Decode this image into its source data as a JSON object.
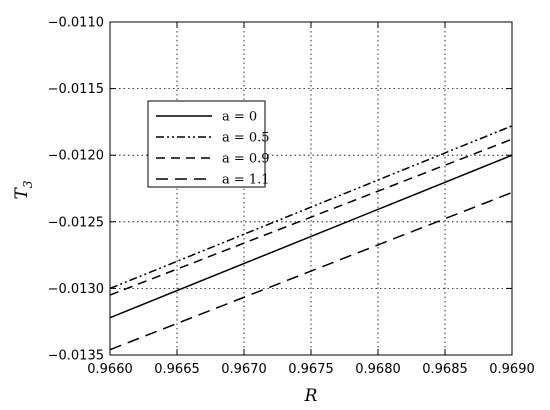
{
  "chart_data": {
    "type": "line",
    "title": "",
    "xlabel": "R",
    "ylabel": "T",
    "ylabel_sub": "3",
    "xlim": [
      0.966,
      0.969
    ],
    "ylim": [
      -0.0135,
      -0.011
    ],
    "xticks": [
      0.966,
      0.9665,
      0.967,
      0.9675,
      0.968,
      0.9685,
      0.969
    ],
    "xtick_labels": [
      "0.9660",
      "0.9665",
      "0.9670",
      "0.9675",
      "0.9680",
      "0.9685",
      "0.9690"
    ],
    "yticks": [
      -0.0135,
      -0.013,
      -0.0125,
      -0.012,
      -0.0115,
      -0.011
    ],
    "ytick_labels": [
      "−0.0135",
      "−0.0130",
      "−0.0125",
      "−0.0120",
      "−0.0115",
      "−0.0110"
    ],
    "grid": true,
    "legend_position": "upper-left",
    "series": [
      {
        "name": "a = 0",
        "dash": "solid",
        "x": [
          0.966,
          0.969
        ],
        "y": [
          -0.01322,
          -0.012
        ]
      },
      {
        "name": "a = 0.5",
        "dash": "dashdot",
        "x": [
          0.966,
          0.969
        ],
        "y": [
          -0.013,
          -0.01178
        ]
      },
      {
        "name": "a = 0.9",
        "dash": "dashed",
        "x": [
          0.966,
          0.969
        ],
        "y": [
          -0.01305,
          -0.01188
        ]
      },
      {
        "name": "a = 1.1",
        "dash": "longdash",
        "x": [
          0.966,
          0.969
        ],
        "y": [
          -0.01346,
          -0.01228
        ]
      }
    ]
  }
}
